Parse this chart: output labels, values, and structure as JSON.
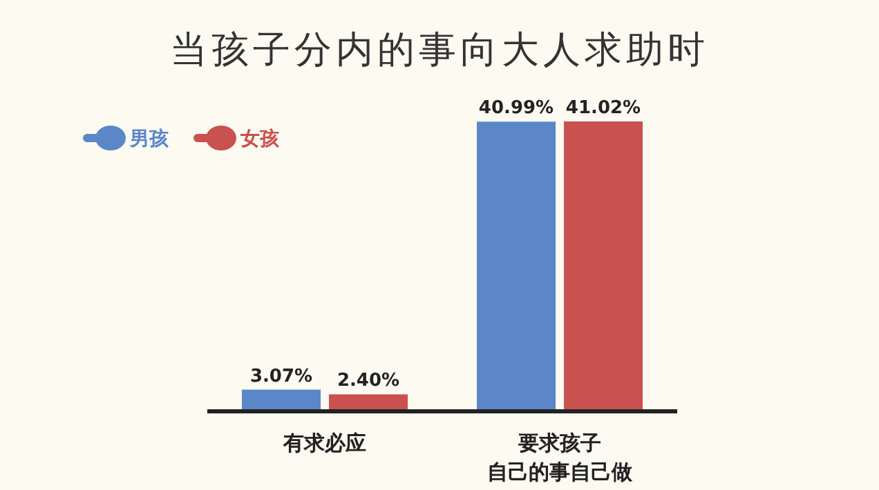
{
  "chart_data": {
    "type": "bar",
    "title": "当孩子分内的事向大人求助时",
    "categories": [
      "有求必应",
      "要求孩子自己的事自己做"
    ],
    "series": [
      {
        "name": "男孩",
        "color": "#5b87c9",
        "values": [
          3.07,
          40.99
        ],
        "value_labels": [
          "3.07%",
          "40.99%"
        ]
      },
      {
        "name": "女孩",
        "color": "#c9514f",
        "values": [
          2.4,
          41.02
        ],
        "value_labels": [
          "2.40%",
          "41.02%"
        ]
      }
    ],
    "legend": "top left"
  }
}
